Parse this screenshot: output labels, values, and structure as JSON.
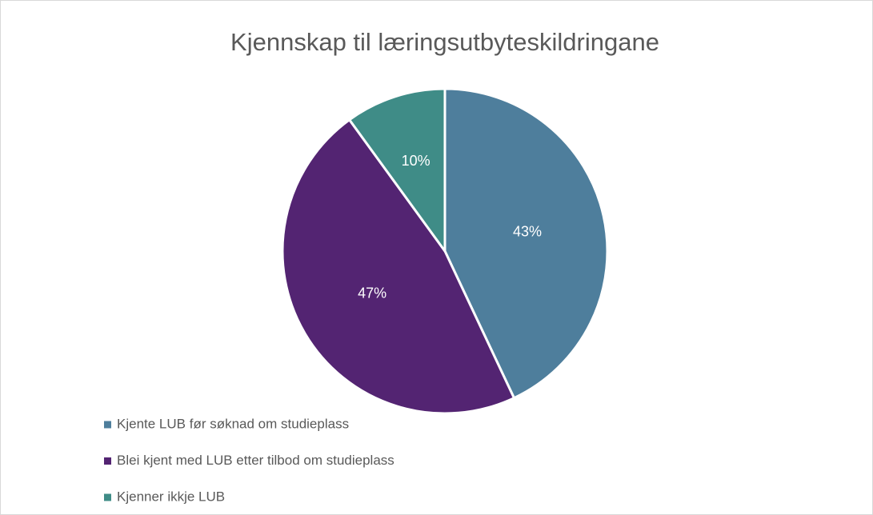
{
  "chart_data": {
    "type": "pie",
    "title": "Kjennskap til læringsutbyteskildringane",
    "categories": [
      "Kjente LUB før søknad om studieplass",
      "Blei kjent med LUB etter tilbod om studieplass",
      "Kjenner ikkje LUB"
    ],
    "values": [
      43,
      47,
      10
    ],
    "value_labels": [
      "43%",
      "47%",
      "10%"
    ],
    "colors": [
      "#4e7e9c",
      "#532472",
      "#3f8c87"
    ],
    "legend": "bottom-left"
  }
}
